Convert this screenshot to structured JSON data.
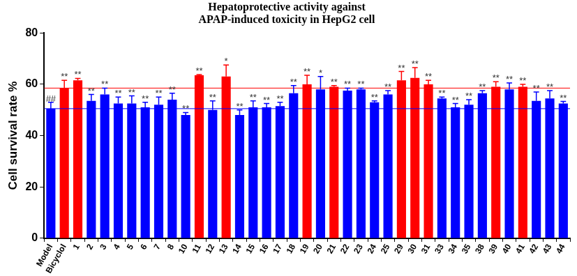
{
  "chart_data": {
    "type": "bar",
    "title": [
      "Hepatoprotective activity against",
      "APAP-induced toxicity in HepG2 cell"
    ],
    "y_label": "Cell survival rate %",
    "categories": [
      "Model",
      "Bicyclol",
      "1",
      "2",
      "3",
      "4",
      "5",
      "6",
      "7",
      "8",
      "10",
      "11",
      "12",
      "13",
      "14",
      "15",
      "16",
      "17",
      "18",
      "19",
      "20",
      "21",
      "22",
      "23",
      "24",
      "25",
      "29",
      "30",
      "31",
      "33",
      "34",
      "35",
      "38",
      "39",
      "40",
      "41",
      "42",
      "43",
      "44"
    ],
    "values": [
      50.5,
      58.5,
      61.5,
      53.5,
      56,
      52.5,
      52.5,
      51,
      52,
      54,
      48,
      63.5,
      50,
      63,
      48,
      51,
      51,
      51.5,
      56.5,
      60,
      58,
      59,
      57.5,
      58,
      53,
      56,
      61.5,
      62.5,
      60,
      54.5,
      51,
      52,
      56.5,
      59,
      58,
      59,
      53.5,
      54.5,
      52.5
    ],
    "errors": [
      2.5,
      3,
      0.8,
      2.5,
      2.5,
      2.5,
      3,
      2,
      3,
      2.5,
      1,
      0.3,
      3.5,
      4.5,
      2,
      2.5,
      1.5,
      1.5,
      3,
      3.5,
      5,
      0.5,
      1,
      0.5,
      0.5,
      1.5,
      3.5,
      4,
      1.5,
      0.5,
      1.5,
      2,
      1,
      2,
      2.5,
      1,
      3.5,
      3,
      0.8
    ],
    "significance": [
      "##",
      "**",
      "**",
      "**",
      "**",
      "**",
      "**",
      "**",
      "**",
      "**",
      "**",
      "**",
      "**",
      "*",
      "**",
      "**",
      "**",
      "**",
      "**",
      "**",
      "*",
      "**",
      "**",
      "**",
      "**",
      "**",
      "**",
      "**",
      "**",
      "**",
      "**",
      "**",
      "**",
      "**",
      "**",
      "**",
      "**",
      "**",
      "**"
    ],
    "colors": [
      "#0000ff",
      "#ff0000",
      "#ff0000",
      "#0000ff",
      "#0000ff",
      "#0000ff",
      "#0000ff",
      "#0000ff",
      "#0000ff",
      "#0000ff",
      "#0000ff",
      "#ff0000",
      "#0000ff",
      "#ff0000",
      "#0000ff",
      "#0000ff",
      "#0000ff",
      "#0000ff",
      "#0000ff",
      "#ff0000",
      "#0000ff",
      "#ff0000",
      "#0000ff",
      "#0000ff",
      "#0000ff",
      "#0000ff",
      "#ff0000",
      "#ff0000",
      "#ff0000",
      "#0000ff",
      "#0000ff",
      "#0000ff",
      "#0000ff",
      "#ff0000",
      "#0000ff",
      "#ff0000",
      "#0000ff",
      "#0000ff",
      "#0000ff"
    ],
    "reference_lines": [
      {
        "value": 58.5,
        "color": "#ff0000"
      },
      {
        "value": 50.5,
        "color": "#0000ff"
      }
    ],
    "ylim": [
      0,
      80
    ],
    "yticks": [
      0,
      20,
      40,
      60,
      80
    ],
    "grid": false
  }
}
